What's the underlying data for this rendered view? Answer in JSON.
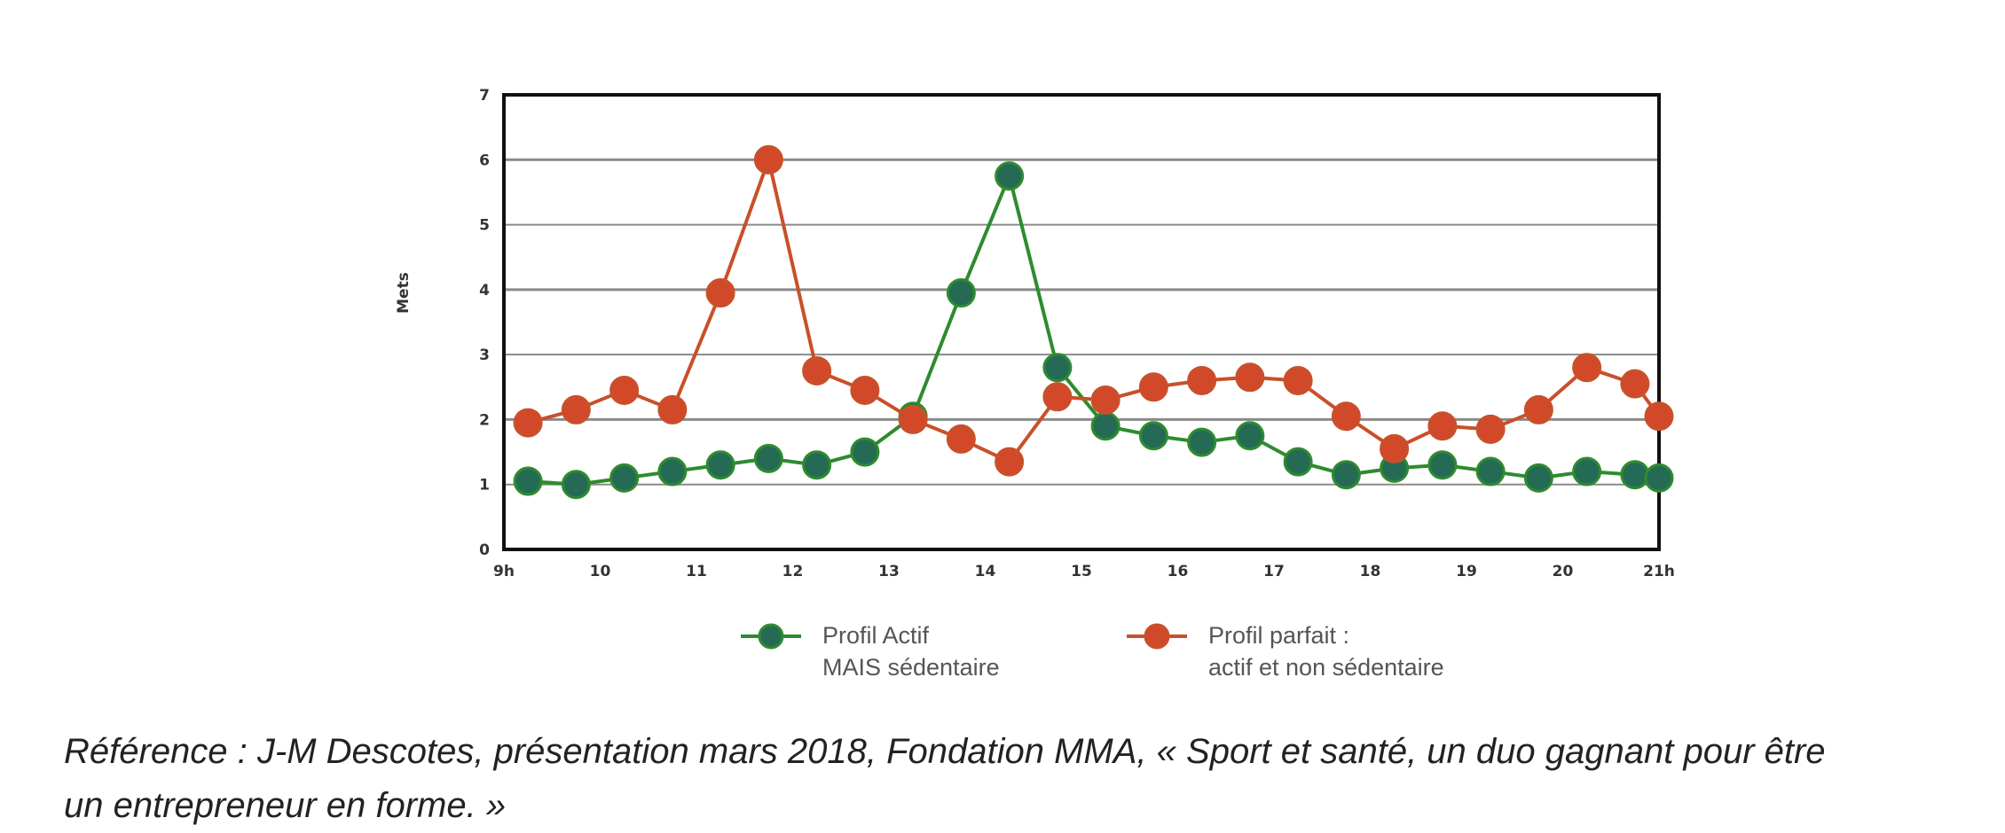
{
  "chart_data": {
    "type": "line",
    "ylabel": "Mets",
    "xlabel": "",
    "ylim": [
      0,
      7
    ],
    "yticks": [
      "0",
      "1",
      "2",
      "3",
      "4",
      "5",
      "6",
      "7"
    ],
    "xticks": [
      "9h",
      "10",
      "11",
      "12",
      "13",
      "14",
      "15",
      "16",
      "17",
      "18",
      "19",
      "20",
      "21h"
    ],
    "grid": true,
    "legend_position": "bottom",
    "x": [
      9.25,
      9.75,
      10.25,
      10.75,
      11.25,
      11.75,
      12.25,
      12.75,
      13.25,
      13.75,
      14.25,
      14.75,
      15.25,
      15.75,
      16.25,
      16.75,
      17.25,
      17.75,
      18.25,
      18.75,
      19.25,
      19.75,
      20.25,
      20.75,
      21
    ],
    "series": [
      {
        "name": "Profil Actif MAIS sédentaire",
        "legend_lines": [
          "Profil Actif",
          "MAIS sédentaire"
        ],
        "color": "#2e8b2e",
        "marker_fill": "#256a55",
        "values": [
          1.05,
          1.0,
          1.1,
          1.2,
          1.3,
          1.4,
          1.3,
          1.5,
          2.05,
          3.95,
          5.75,
          2.8,
          1.9,
          1.75,
          1.65,
          1.75,
          1.35,
          1.15,
          1.25,
          1.3,
          1.2,
          1.1,
          1.2,
          1.15,
          1.1
        ]
      },
      {
        "name": "Profil parfait : actif et non sédentaire",
        "legend_lines": [
          "Profil parfait :",
          "actif et non sédentaire"
        ],
        "color": "#c8502a",
        "marker_fill": "#d2492a",
        "values": [
          1.95,
          2.15,
          2.45,
          2.15,
          3.95,
          6.0,
          2.75,
          2.45,
          2.0,
          1.7,
          1.35,
          2.35,
          2.3,
          2.5,
          2.6,
          2.65,
          2.6,
          2.05,
          1.55,
          1.9,
          1.85,
          2.15,
          2.8,
          2.55,
          2.05
        ]
      }
    ]
  },
  "reference": {
    "line1": "Référence : J-M Descotes, présentation mars 2018, Fondation MMA, « Sport et santé, un duo gagnant pour être",
    "line2": "un entrepreneur en forme. »"
  }
}
